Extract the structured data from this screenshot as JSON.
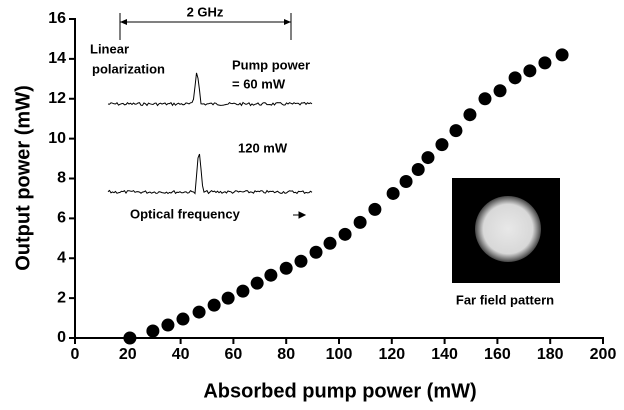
{
  "chart_data": {
    "type": "scatter",
    "x_label": "Absorbed pump power (mW)",
    "y_label": "Output power (mW)",
    "x": [
      20.8,
      29.5,
      35.2,
      40.9,
      47,
      52.7,
      58,
      63.6,
      69,
      74.2,
      80,
      85.6,
      91.3,
      96.6,
      102.3,
      108,
      113.6,
      120.5,
      125.4,
      130,
      133.7,
      139,
      144.3,
      149.6,
      155.3,
      161,
      166.7,
      172.3,
      178,
      184.5
    ],
    "values": [
      0,
      0.35,
      0.65,
      0.95,
      1.3,
      1.65,
      2.0,
      2.35,
      2.75,
      3.15,
      3.5,
      3.85,
      4.3,
      4.75,
      5.2,
      5.8,
      6.45,
      7.25,
      7.85,
      8.45,
      9.05,
      9.7,
      10.4,
      11.2,
      12.0,
      12.4,
      13.05,
      13.4,
      13.8,
      14.2
    ],
    "color": "#000000",
    "xlim": [
      0,
      200
    ],
    "xticks": [
      0,
      20,
      40,
      60,
      80,
      100,
      120,
      140,
      160,
      180,
      200
    ],
    "ylim": [
      0,
      16
    ],
    "yticks": [
      0,
      2,
      4,
      6,
      8,
      10,
      12,
      14,
      16
    ],
    "annotations": [
      "2 GHz",
      "Linear",
      "polarization",
      "Pump power",
      "= 60 mW",
      "120 mW",
      "Optical frequency",
      "Far field pattern"
    ]
  }
}
